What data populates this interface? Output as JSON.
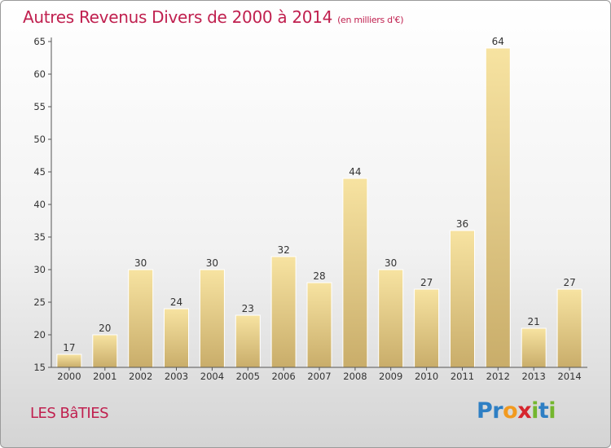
{
  "page": {
    "title": "Autres Revenus Divers de 2000 à 2014",
    "title_unit": "(en milliers d'€)",
    "location": "LES BâTIES",
    "logo_letters": [
      {
        "ch": "P",
        "color": "#2e7fc4"
      },
      {
        "ch": "r",
        "color": "#2e7fc4"
      },
      {
        "ch": "o",
        "color": "#f29a1f"
      },
      {
        "ch": "x",
        "color": "#d6262e"
      },
      {
        "ch": "i",
        "color": "#74b62e"
      },
      {
        "ch": "t",
        "color": "#2e7fc4"
      },
      {
        "ch": "i",
        "color": "#74b62e"
      }
    ]
  },
  "chart_data": {
    "type": "bar",
    "title": "Autres Revenus Divers de 2000 à 2014",
    "unit_label": "(en milliers d'€)",
    "categories": [
      "2000",
      "2001",
      "2002",
      "2003",
      "2004",
      "2005",
      "2006",
      "2007",
      "2008",
      "2009",
      "2010",
      "2011",
      "2012",
      "2013",
      "2014"
    ],
    "values": [
      17,
      20,
      30,
      24,
      30,
      23,
      32,
      28,
      44,
      30,
      27,
      36,
      64,
      21,
      27
    ],
    "ylim": [
      15,
      65
    ],
    "yticks": [
      15,
      20,
      25,
      30,
      35,
      40,
      45,
      50,
      55,
      60,
      65
    ],
    "grid": false,
    "legend": "none",
    "colors": {
      "bar_light": "#f7e3a1",
      "bar_dark": "#c9ad6a",
      "bar_edge": "#ffffff",
      "axis": "#555555",
      "title": "#c0204f"
    }
  }
}
